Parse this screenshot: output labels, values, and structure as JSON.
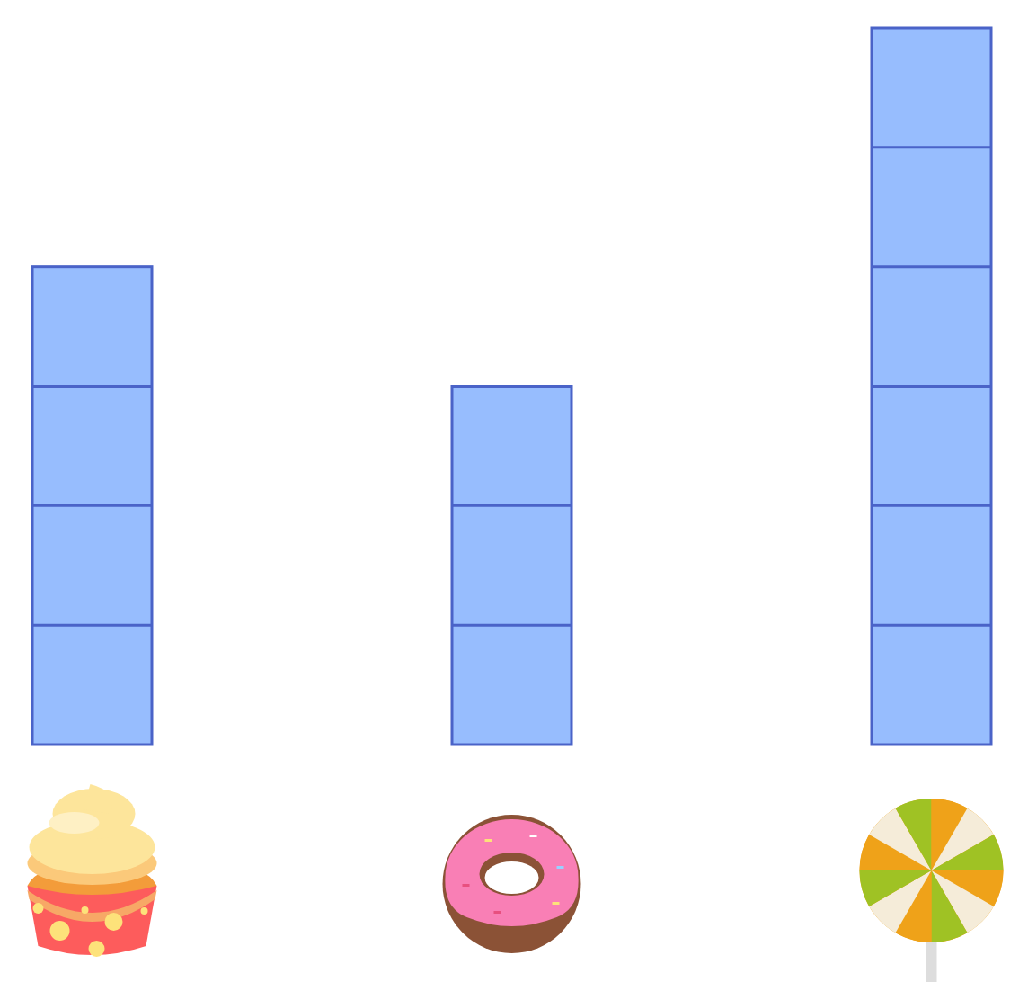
{
  "chart_data": {
    "type": "bar",
    "categories": [
      null,
      null,
      null
    ],
    "values": [
      4,
      3,
      6
    ],
    "color": "#97bdfe",
    "ylim": [
      0,
      6
    ],
    "tick_labels": false
  }
}
